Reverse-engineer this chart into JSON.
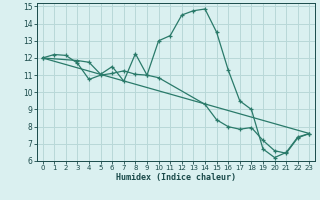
{
  "xlabel": "Humidex (Indice chaleur)",
  "bg_color": "#daf0f0",
  "grid_color": "#b8d8d8",
  "line_color": "#2a7a6a",
  "xlim": [
    -0.5,
    23.5
  ],
  "ylim": [
    6,
    15.2
  ],
  "xticks": [
    0,
    1,
    2,
    3,
    4,
    5,
    6,
    7,
    8,
    9,
    10,
    11,
    12,
    13,
    14,
    15,
    16,
    17,
    18,
    19,
    20,
    21,
    22,
    23
  ],
  "yticks": [
    6,
    7,
    8,
    9,
    10,
    11,
    12,
    13,
    14,
    15
  ],
  "line1_x": [
    0,
    1,
    2,
    3,
    4,
    5,
    6,
    7,
    8,
    9,
    10,
    11,
    12,
    13,
    14,
    15,
    16,
    17,
    18,
    19,
    20,
    21,
    22,
    23
  ],
  "line1_y": [
    12,
    12.2,
    12.15,
    11.7,
    10.75,
    11.0,
    11.1,
    11.25,
    11.05,
    11.0,
    13.0,
    13.3,
    14.5,
    14.75,
    14.85,
    13.5,
    11.3,
    9.5,
    9.0,
    6.7,
    6.2,
    6.5,
    7.4,
    7.6
  ],
  "line2_x": [
    0,
    3,
    4,
    5,
    6,
    7,
    8,
    9,
    10,
    14,
    15,
    16,
    17,
    18,
    19,
    20,
    21,
    22,
    23
  ],
  "line2_y": [
    12,
    11.85,
    11.75,
    11.05,
    11.5,
    10.65,
    12.25,
    11.0,
    10.85,
    9.3,
    8.4,
    8.0,
    7.85,
    7.95,
    7.2,
    6.6,
    6.45,
    7.35,
    7.6
  ],
  "line3_x": [
    0,
    23
  ],
  "line3_y": [
    12,
    7.6
  ]
}
